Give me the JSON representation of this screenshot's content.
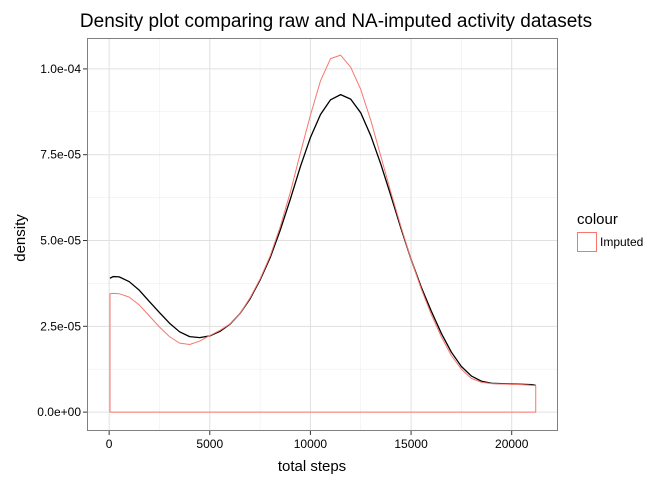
{
  "chart_data": {
    "type": "line",
    "title": "Density plot comparing raw and NA-imputed activity datasets",
    "xlabel": "total steps",
    "ylabel": "density",
    "xlim": [
      -1100,
      22300
    ],
    "ylim": [
      -5.5e-06,
      0.000109
    ],
    "x_ticks": [
      0,
      5000,
      10000,
      15000,
      20000
    ],
    "x_tick_labels": [
      "0",
      "5000",
      "10000",
      "15000",
      "20000"
    ],
    "y_ticks": [
      0,
      2.5e-05,
      5e-05,
      7.5e-05,
      0.0001
    ],
    "y_tick_labels": [
      "0.0e+00",
      "2.5e-05",
      "5.0e-05",
      "7.5e-05",
      "1.0e-04"
    ],
    "grid": true,
    "legend": {
      "title": "colour",
      "position": "right",
      "entries": [
        {
          "label": "Imputed",
          "color": "#F8766D"
        }
      ]
    },
    "series": [
      {
        "color": "#000000",
        "closed": false,
        "x": [
          41,
          200,
          500,
          1000,
          1500,
          2000,
          2500,
          3000,
          3500,
          4000,
          4500,
          5000,
          5500,
          6000,
          6500,
          7000,
          7500,
          8000,
          8500,
          9000,
          9500,
          10000,
          10500,
          11000,
          11500,
          12000,
          12500,
          13000,
          13500,
          14000,
          14500,
          15000,
          15500,
          16000,
          16500,
          17000,
          17500,
          18000,
          18500,
          19000,
          19500,
          20000,
          20500,
          21000,
          21194
        ],
        "y": [
          3.9e-05,
          3.95e-05,
          3.94e-05,
          3.8e-05,
          3.55e-05,
          3.22e-05,
          2.9e-05,
          2.59e-05,
          2.34e-05,
          2.2e-05,
          2.17e-05,
          2.22e-05,
          2.35e-05,
          2.56e-05,
          2.87e-05,
          3.3e-05,
          3.85e-05,
          4.5e-05,
          5.3e-05,
          6.2e-05,
          7.15e-05,
          8e-05,
          8.67e-05,
          9.1e-05,
          9.25e-05,
          9.12e-05,
          8.72e-05,
          8.05e-05,
          7.22e-05,
          6.3e-05,
          5.35e-05,
          4.45e-05,
          3.65e-05,
          2.95e-05,
          2.3e-05,
          1.75e-05,
          1.33e-05,
          1.05e-05,
          9e-06,
          8.4e-06,
          8.3e-06,
          8.2e-06,
          8.1e-06,
          8e-06,
          7.8e-06
        ]
      },
      {
        "name": "Imputed",
        "color": "#F8766D",
        "closed": true,
        "x": [
          41,
          200,
          500,
          1000,
          1500,
          2000,
          2500,
          3000,
          3500,
          4000,
          4500,
          5000,
          5500,
          6000,
          6500,
          7000,
          7500,
          8000,
          8500,
          9000,
          9500,
          10000,
          10500,
          11000,
          11500,
          12000,
          12500,
          13000,
          13500,
          14000,
          14500,
          15000,
          15500,
          16000,
          16500,
          17000,
          17500,
          18000,
          18500,
          19000,
          19500,
          20000,
          20500,
          21000,
          21194
        ],
        "y": [
          3.45e-05,
          3.46e-05,
          3.45e-05,
          3.35e-05,
          3.12e-05,
          2.8e-05,
          2.48e-05,
          2.2e-05,
          2.01e-05,
          1.97e-05,
          2.07e-05,
          2.23e-05,
          2.38e-05,
          2.57e-05,
          2.87e-05,
          3.33e-05,
          3.88e-05,
          4.55e-05,
          5.4e-05,
          6.4e-05,
          7.55e-05,
          8.65e-05,
          9.65e-05,
          0.000103,
          0.000104,
          0.0001005,
          9.4e-05,
          8.5e-05,
          7.45e-05,
          6.4e-05,
          5.4e-05,
          4.45e-05,
          3.6e-05,
          2.85e-05,
          2.2e-05,
          1.65e-05,
          1.25e-05,
          9.8e-06,
          8.7e-06,
          8.3e-06,
          8.2e-06,
          8.1e-06,
          8e-06,
          7.8e-06,
          7.7e-06
        ]
      }
    ]
  }
}
